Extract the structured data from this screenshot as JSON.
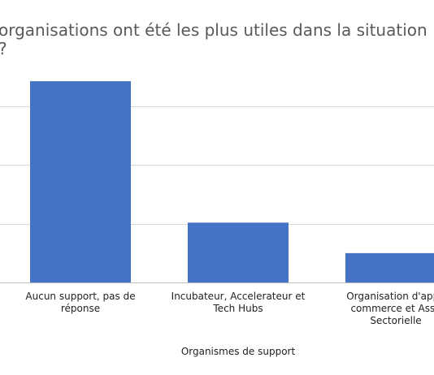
{
  "chart_data": {
    "type": "bar",
    "title_lines": [
      "organisations ont été les plus utiles dans la situation",
      "?"
    ],
    "xlabel": "Organismes de support",
    "ylabel": "",
    "ylim": [
      0,
      35
    ],
    "grid": true,
    "series_color": "#4472C4",
    "grid_color": "#d9d9d9",
    "categories": [
      [
        "Aucun support, pas de",
        "réponse"
      ],
      [
        "Incubateur, Accelerateur et",
        "Tech Hubs"
      ],
      [
        "Organisation d'appu",
        "commerce et Asso",
        "Sectorielle"
      ]
    ],
    "values": [
      34.3,
      10.2,
      5.0
    ]
  }
}
